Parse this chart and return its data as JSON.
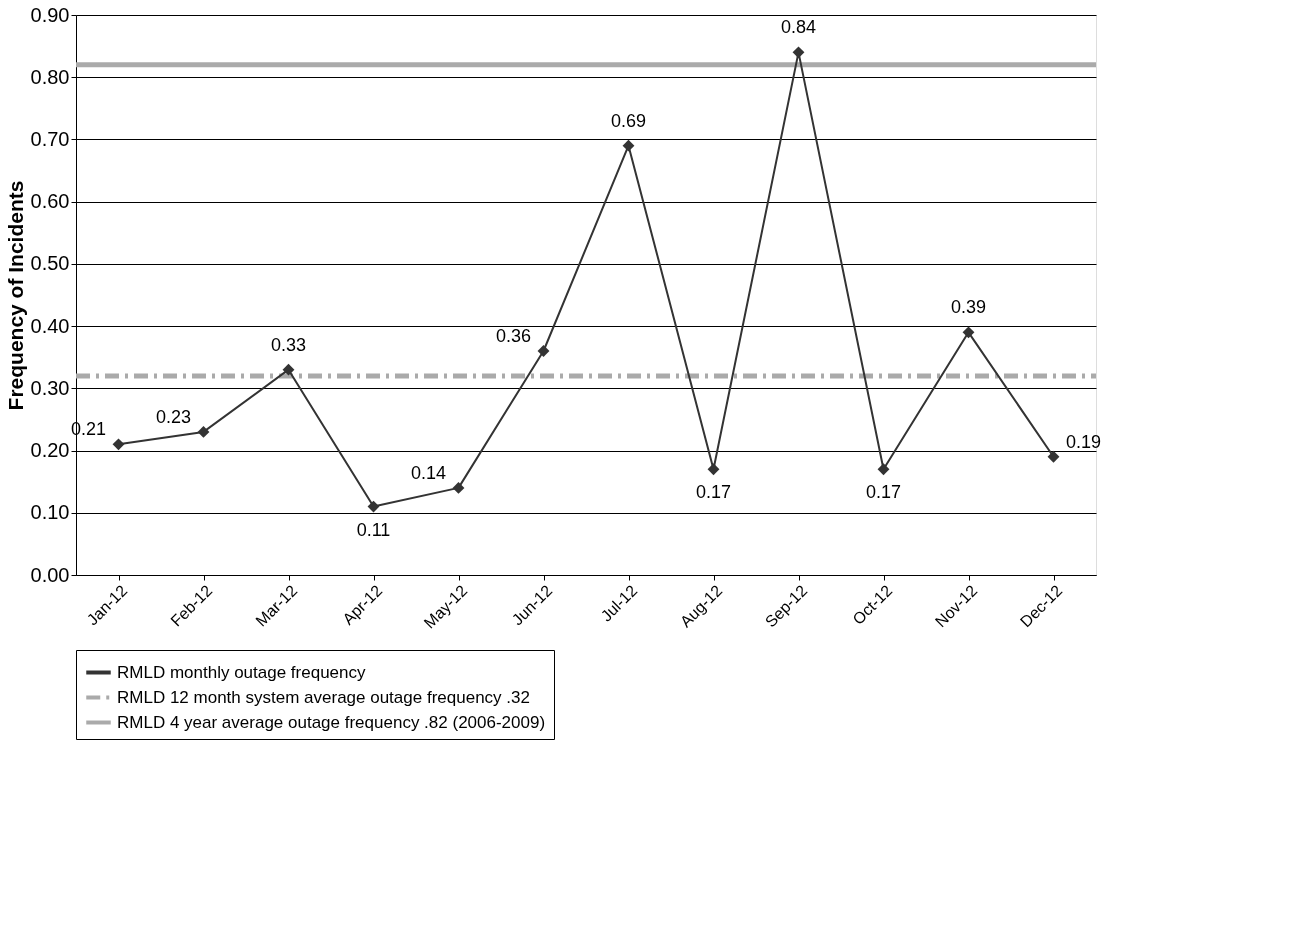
{
  "chart_data": {
    "type": "line",
    "ylabel": "Frequency of Incidents",
    "categories": [
      "Jan-12",
      "Feb-12",
      "Mar-12",
      "Apr-12",
      "May-12",
      "Jun-12",
      "Jul-12",
      "Aug-12",
      "Sep-12",
      "Oct-12",
      "Nov-12",
      "Dec-12"
    ],
    "series": [
      {
        "name": "RMLD monthly outage frequency",
        "color": "#333333",
        "values": [
          0.21,
          0.23,
          0.33,
          0.11,
          0.14,
          0.36,
          0.69,
          0.17,
          0.84,
          0.17,
          0.39,
          0.19
        ]
      }
    ],
    "ref_lines": [
      {
        "axis": "y",
        "value": 0.32,
        "label": "RMLD 12 month system average outage frequency .32",
        "color": "#aaaaaa",
        "line_style": "dashed"
      },
      {
        "axis": "y",
        "value": 0.82,
        "label": "RMLD 4 year average outage frequency .82 (2006-2009)",
        "color": "#aaaaaa",
        "line_style": "solid"
      }
    ],
    "ylim": [
      0,
      0.9
    ],
    "yticks": [
      {
        "value": 0,
        "label": "0.00"
      },
      {
        "value": 0.1,
        "label": "0.10"
      },
      {
        "value": 0.2,
        "label": "0.20"
      },
      {
        "value": 0.3,
        "label": "0.30"
      },
      {
        "value": 0.4,
        "label": "0.40"
      },
      {
        "value": 0.5,
        "label": "0.50"
      },
      {
        "value": 0.6,
        "label": "0.60"
      },
      {
        "value": 0.7,
        "label": "0.70"
      },
      {
        "value": 0.8,
        "label": "0.80"
      },
      {
        "value": 0.9,
        "label": "0.90"
      }
    ],
    "grid": "y",
    "legend": "bottom",
    "marker": "diamond",
    "line_style": "solid",
    "data_labels": true
  }
}
